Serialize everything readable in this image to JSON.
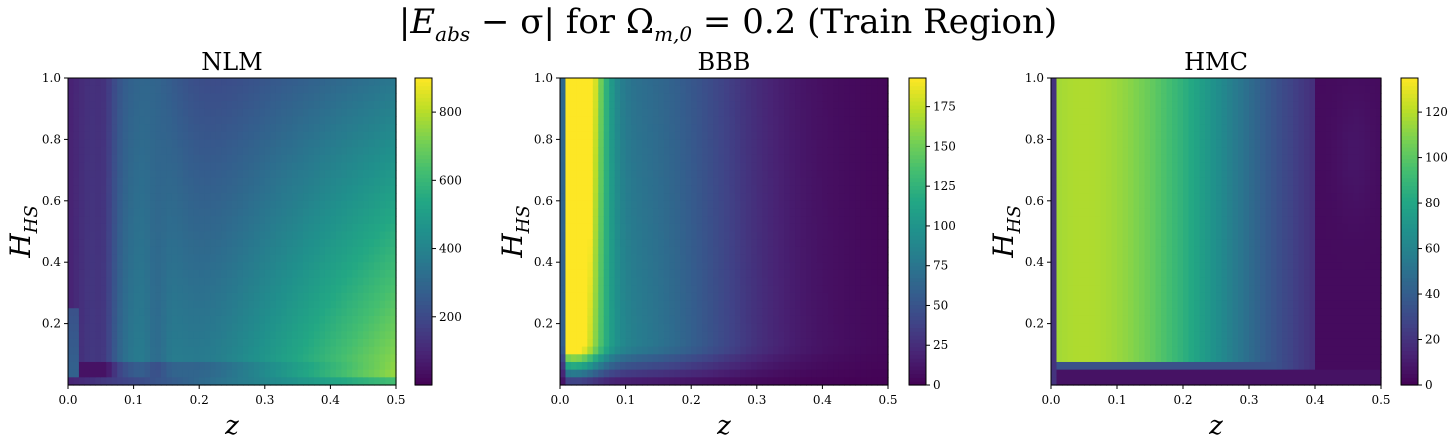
{
  "figure": {
    "suptitle_parts": {
      "lhs_open": "|",
      "E": "E",
      "E_sub": "abs",
      "minus_sigma": " − σ| ",
      "for_text": "for ",
      "omega": "Ω",
      "omega_sub": "m,0",
      "eq_value": " = 0.2 ",
      "region": "(Train Region)"
    }
  },
  "chart_data": [
    {
      "type": "heatmap",
      "title": "NLM",
      "xlabel": "z",
      "ylabel": "H_HS",
      "xlim": [
        0.0,
        0.5
      ],
      "ylim": [
        0.0,
        1.0
      ],
      "xticks": [
        "0.0",
        "0.1",
        "0.2",
        "0.3",
        "0.4",
        "0.5"
      ],
      "yticks": [
        "0.2",
        "0.4",
        "0.6",
        "0.8",
        "1.0"
      ],
      "colorbar": {
        "min": 0,
        "max": 900,
        "ticks": [
          200,
          400,
          600,
          800
        ],
        "colormap": "viridis"
      },
      "grid": false
    },
    {
      "type": "heatmap",
      "title": "BBB",
      "xlabel": "z",
      "ylabel": "H_HS",
      "xlim": [
        0.0,
        0.5
      ],
      "ylim": [
        0.0,
        1.0
      ],
      "xticks": [
        "0.0",
        "0.1",
        "0.2",
        "0.3",
        "0.4",
        "0.5"
      ],
      "yticks": [
        "0.2",
        "0.4",
        "0.6",
        "0.8",
        "1.0"
      ],
      "colorbar": {
        "min": 0,
        "max": 193,
        "ticks": [
          0,
          25,
          50,
          75,
          100,
          125,
          150,
          175
        ],
        "colormap": "viridis"
      },
      "grid": false
    },
    {
      "type": "heatmap",
      "title": "HMC",
      "xlabel": "z",
      "ylabel": "H_HS",
      "xlim": [
        0.0,
        0.5
      ],
      "ylim": [
        0.0,
        1.0
      ],
      "xticks": [
        "0.0",
        "0.1",
        "0.2",
        "0.3",
        "0.4",
        "0.5"
      ],
      "yticks": [
        "0.2",
        "0.4",
        "0.6",
        "0.8",
        "1.0"
      ],
      "colorbar": {
        "min": 0,
        "max": 135,
        "ticks": [
          0,
          20,
          40,
          60,
          80,
          100,
          120
        ],
        "colormap": "viridis"
      },
      "grid": false
    }
  ]
}
